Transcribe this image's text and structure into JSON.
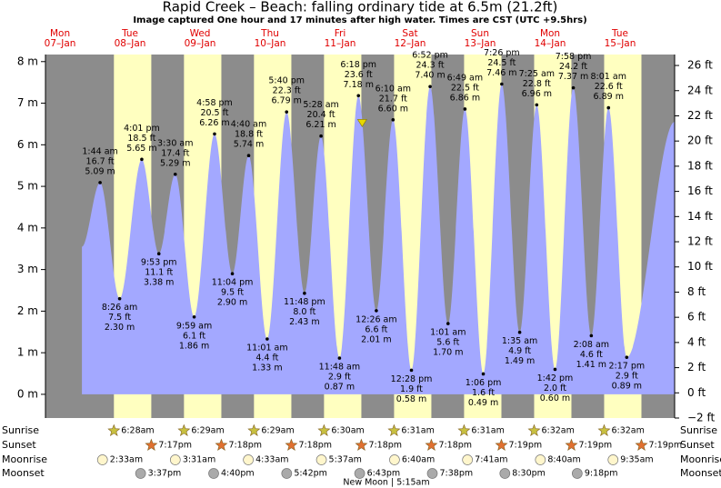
{
  "chart_data": {
    "type": "area",
    "title": "Rapid Creek – Beach: falling  ordinary tide at 6.5m (21.2ft)",
    "subtitle": "Image captured One hour and 17 minutes after high water. Times are CST (UTC +9.5hrs)",
    "color": "#a3a8ff",
    "background_color": "#8c8c8c",
    "daylight_color": "#ffffc0",
    "xlim": [
      7,
      222.7
    ],
    "ylim": [
      -0.57,
      8.17
    ],
    "yticks": [
      {
        "value": 0,
        "label": "0 m"
      },
      {
        "value": 1,
        "label": "1 m"
      },
      {
        "value": 2,
        "label": "2 m"
      },
      {
        "value": 3,
        "label": "3 m"
      },
      {
        "value": 4,
        "label": "4 m"
      },
      {
        "value": 5,
        "label": "5 m"
      },
      {
        "value": 6,
        "label": "6 m"
      },
      {
        "value": 7,
        "label": "7 m"
      },
      {
        "value": 8,
        "label": "8 m"
      }
    ],
    "y2lim": [
      -2,
      26.87
    ],
    "y2ticks": [
      {
        "value": -2,
        "label": "−2 ft"
      },
      {
        "value": 0,
        "label": "0 ft"
      },
      {
        "value": 2,
        "label": "2 ft"
      },
      {
        "value": 4,
        "label": "4 ft"
      },
      {
        "value": 6,
        "label": "6 ft"
      },
      {
        "value": 8,
        "label": "8 ft"
      },
      {
        "value": 10,
        "label": "10 ft"
      },
      {
        "value": 12,
        "label": "12 ft"
      },
      {
        "value": 14,
        "label": "14 ft"
      },
      {
        "value": 16,
        "label": "16 ft"
      },
      {
        "value": 18,
        "label": "18 ft"
      },
      {
        "value": 20,
        "label": "20 ft"
      },
      {
        "value": 22,
        "label": "22 ft"
      },
      {
        "value": 24,
        "label": "24 ft"
      },
      {
        "value": 26,
        "label": "26 ft"
      }
    ],
    "x": [
      19.5,
      25.73,
      32.43,
      40.02,
      45.88,
      51.5,
      57.98,
      64.97,
      71.07,
      76.67,
      83.02,
      89.67,
      95.8,
      101.47,
      107.8,
      114.3,
      120.43,
      126.17,
      132.47,
      138.87,
      145.02,
      150.82,
      157.1,
      163.43,
      169.58,
      175.42,
      181.7,
      187.97,
      194.13,
      200.02,
      206.28,
      222.7
    ],
    "values": [
      3.55,
      5.09,
      2.3,
      5.65,
      3.38,
      5.29,
      1.86,
      6.26,
      2.9,
      5.74,
      1.33,
      6.79,
      2.43,
      6.21,
      0.87,
      7.18,
      2.01,
      6.6,
      0.58,
      7.4,
      1.7,
      6.86,
      0.49,
      7.46,
      1.49,
      6.96,
      0.6,
      7.37,
      1.41,
      6.89,
      0.89,
      6.55
    ],
    "value_labels": [
      null,
      "5.09 m",
      "2.30 m",
      "5.65 m",
      "3.38 m",
      "5.29 m",
      "1.86 m",
      "6.26 m",
      "2.90 m",
      "5.74 m",
      "1.33 m",
      "6.79 m",
      "2.43 m",
      "6.21 m",
      "0.87 m",
      "7.18 m",
      "2.01 m",
      "6.60 m",
      "0.58 m",
      "7.40 m",
      "1.70 m",
      "6.86 m",
      "0.49 m",
      "7.46 m",
      "1.49 m",
      "6.96 m",
      "0.60 m",
      "7.37 m",
      "1.41 m",
      "6.89 m",
      "0.89 m",
      null
    ],
    "feet_labels": [
      null,
      "16.7 ft",
      "7.5 ft",
      "18.5 ft",
      "11.1 ft",
      "17.4 ft",
      "6.1 ft",
      "20.5 ft",
      "9.5 ft",
      "18.8 ft",
      "4.4 ft",
      "22.3 ft",
      "8.0 ft",
      "20.4 ft",
      "2.9 ft",
      "23.6 ft",
      "6.6 ft",
      "21.7 ft",
      "1.9 ft",
      "24.3 ft",
      "5.6 ft",
      "22.5 ft",
      "1.6 ft",
      "24.5 ft",
      "4.9 ft",
      "22.8 ft",
      "2.0 ft",
      "24.2 ft",
      "4.6 ft",
      "22.6 ft",
      "2.9 ft",
      null
    ],
    "times": [
      null,
      "1:44 am",
      "8:26 am",
      "4:01 pm",
      "9:53 pm",
      "3:30 am",
      "9:59 am",
      "4:58 pm",
      "11:04 pm",
      "4:40 am",
      "11:01 am",
      "5:40 pm",
      "11:48 pm",
      "5:28 am",
      "11:48 am",
      "6:18 pm",
      "12:26 am",
      "6:10 am",
      "12:28 pm",
      "6:52 pm",
      "1:01 am",
      "6:49 am",
      "1:06 pm",
      "7:26 pm",
      "1:35 am",
      "7:25 am",
      "1:42 pm",
      "7:58 pm",
      "2:08 am",
      "8:01 am",
      "2:17 pm",
      null
    ],
    "marker": {
      "x": 115.58,
      "value": 6.5,
      "color": "#e8d800"
    },
    "days": [
      {
        "name": "Mon",
        "date": "07–Jan",
        "sunrise": null,
        "sunset": null,
        "moonrise": null,
        "moonset": null
      },
      {
        "name": "Tue",
        "date": "08–Jan",
        "sunrise": "6:28am",
        "sunset": "7:17pm",
        "moonrise": "2:33am",
        "moonset": "3:37pm"
      },
      {
        "name": "Wed",
        "date": "09–Jan",
        "sunrise": "6:29am",
        "sunset": "7:18pm",
        "moonrise": "3:31am",
        "moonset": "4:40pm"
      },
      {
        "name": "Thu",
        "date": "10–Jan",
        "sunrise": "6:29am",
        "sunset": "7:18pm",
        "moonrise": "4:33am",
        "moonset": "5:42pm"
      },
      {
        "name": "Fri",
        "date": "11–Jan",
        "sunrise": "6:30am",
        "sunset": "7:18pm",
        "moonrise": "5:37am",
        "moonset": "6:43pm"
      },
      {
        "name": "Sat",
        "date": "12–Jan",
        "sunrise": "6:31am",
        "sunset": "7:18pm",
        "moonrise": "6:40am",
        "moonset": "7:38pm"
      },
      {
        "name": "Sun",
        "date": "13–Jan",
        "sunrise": "6:31am",
        "sunset": "7:19pm",
        "moonrise": "7:41am",
        "moonset": "8:30pm"
      },
      {
        "name": "Mon",
        "date": "14–Jan",
        "sunrise": "6:32am",
        "sunset": "7:19pm",
        "moonrise": "8:40am",
        "moonset": "9:18pm"
      },
      {
        "name": "Tue",
        "date": "15–Jan",
        "sunrise": "6:32am",
        "sunset": "7:19pm",
        "moonrise": "9:35am",
        "moonset": null
      }
    ],
    "row_labels": {
      "sunrise": "Sunrise",
      "sunset": "Sunset",
      "moonrise": "Moonrise",
      "moonset": "Moonset"
    },
    "note": "New Moon | 5:15am"
  }
}
